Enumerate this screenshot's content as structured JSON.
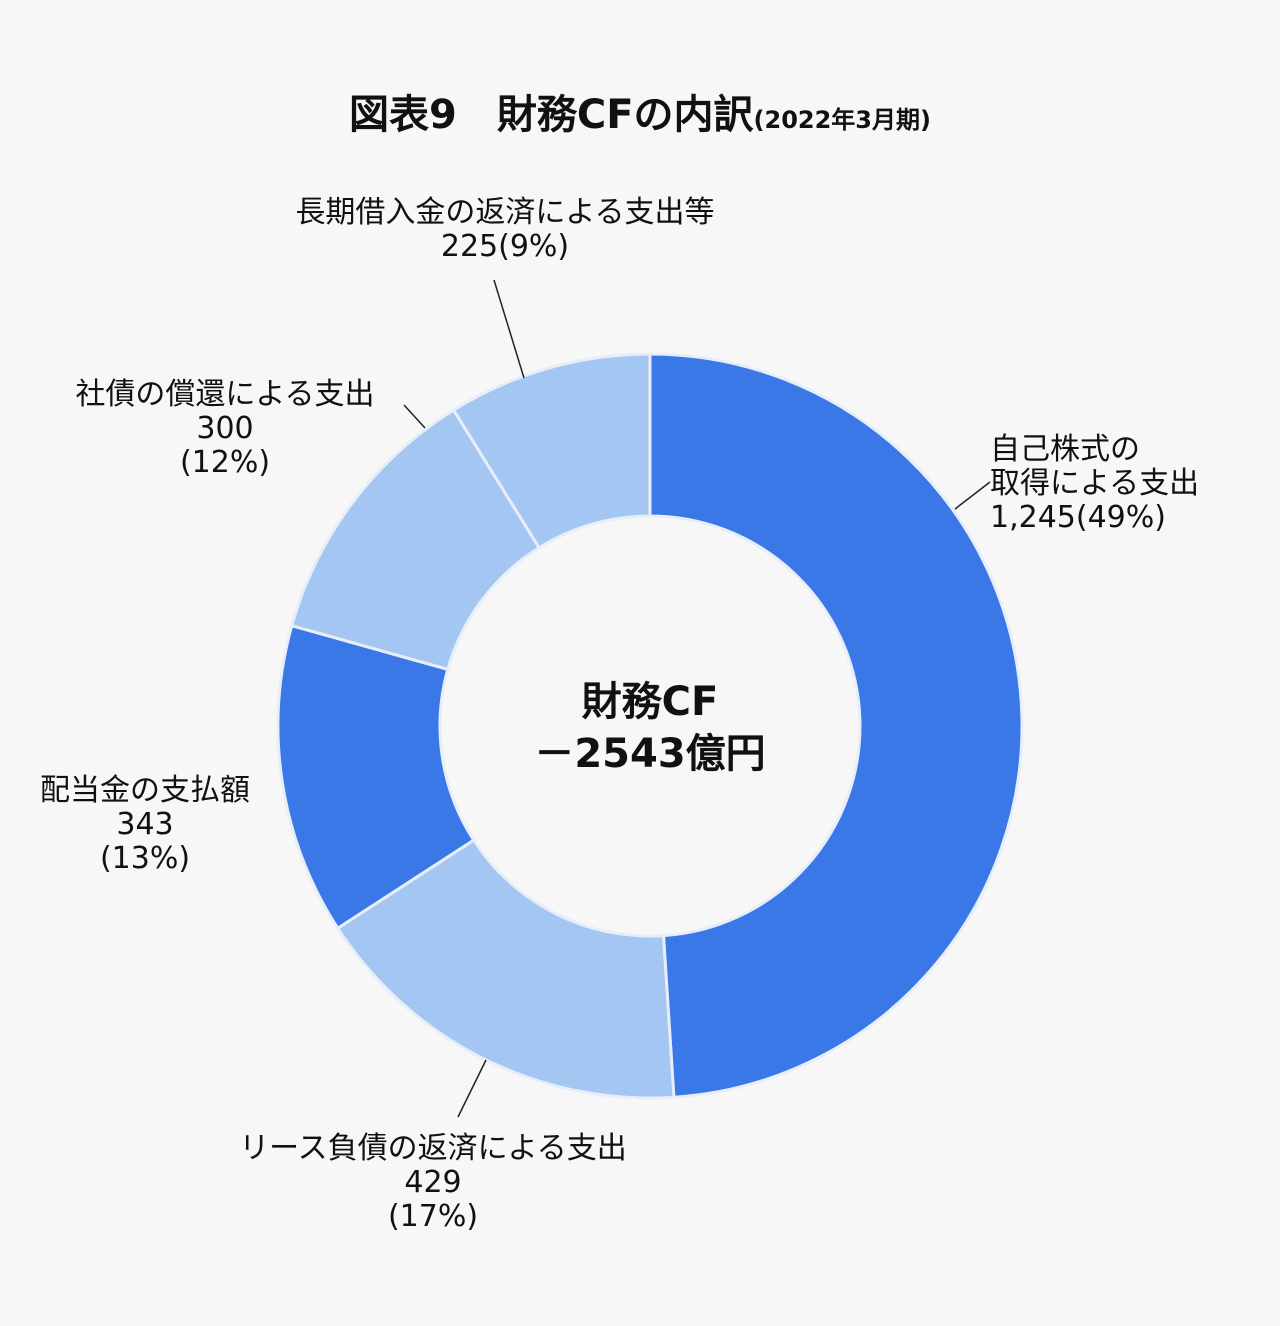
{
  "title": {
    "main": "図表9　財務CFの内訳",
    "sub": "(2022年3月期)"
  },
  "center": {
    "line1": "財務CF",
    "line2": "－2543億円"
  },
  "colors": {
    "dark": "#3b78e7",
    "light": "#a3c6f3",
    "stroke": "#e8eef8"
  },
  "chart_data": {
    "type": "pie",
    "title": "図表9　財務CFの内訳(2022年3月期)",
    "unit": "億円",
    "total": 2543,
    "slices": [
      {
        "label": "自己株式の取得による支出",
        "value": 1245,
        "percent": 49,
        "color": "dark"
      },
      {
        "label": "リース負債の返済による支出",
        "value": 429,
        "percent": 17,
        "color": "light"
      },
      {
        "label": "配当金の支払額",
        "value": 343,
        "percent": 13,
        "color": "dark"
      },
      {
        "label": "社債の償還による支出",
        "value": 300,
        "percent": 12,
        "color": "light"
      },
      {
        "label": "長期借入金の返済による支出等",
        "value": 225,
        "percent": 9,
        "color": "light"
      }
    ]
  },
  "labels": {
    "treasury": {
      "line1": "自己株式の",
      "line2": "取得による支出",
      "line3": "1,245(49%)"
    },
    "lease": {
      "line1": "リース負債の返済による支出",
      "line2": "429",
      "line3": "(17%)"
    },
    "dividend": {
      "line1": "配当金の支払額",
      "line2": "343",
      "line3": "(13%)"
    },
    "bond": {
      "line1": "社債の償還による支出",
      "line2": "300",
      "line3": "(12%)"
    },
    "loan": {
      "line1": "長期借入金の返済による支出等",
      "line2": "225(9%)"
    }
  }
}
